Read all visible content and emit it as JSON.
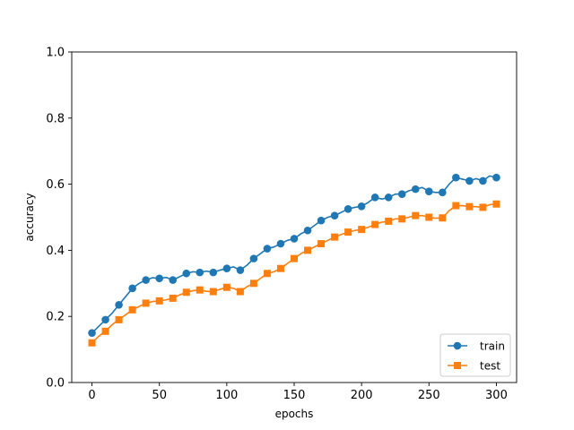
{
  "chart_data": {
    "type": "line",
    "title": "",
    "xlabel": "epochs",
    "ylabel": "accuracy",
    "xlim": [
      -15,
      315
    ],
    "ylim": [
      0.0,
      1.0
    ],
    "xticks": [
      0,
      50,
      100,
      150,
      200,
      250,
      300
    ],
    "xtick_labels": [
      "0",
      "50",
      "100",
      "150",
      "200",
      "250",
      "300"
    ],
    "yticks": [
      0.0,
      0.2,
      0.4,
      0.6,
      0.8,
      1.0
    ],
    "ytick_labels": [
      "0.0",
      "0.2",
      "0.4",
      "0.6",
      "0.8",
      "1.0"
    ],
    "grid": false,
    "legend_position": "lower-right",
    "series": [
      {
        "name": "train",
        "color": "#1f77b4",
        "marker": "circle",
        "marker_every": 10,
        "x": [
          0,
          5,
          10,
          15,
          20,
          25,
          30,
          35,
          40,
          45,
          50,
          55,
          60,
          65,
          70,
          75,
          80,
          85,
          90,
          95,
          100,
          105,
          110,
          115,
          120,
          125,
          130,
          135,
          140,
          145,
          150,
          155,
          160,
          165,
          170,
          175,
          180,
          185,
          190,
          195,
          200,
          205,
          210,
          215,
          220,
          225,
          230,
          235,
          240,
          245,
          250,
          255,
          260,
          265,
          270,
          275,
          280,
          285,
          290,
          295,
          300
        ],
        "values": [
          0.15,
          0.17,
          0.19,
          0.21,
          0.235,
          0.26,
          0.285,
          0.3,
          0.31,
          0.317,
          0.315,
          0.318,
          0.31,
          0.32,
          0.33,
          0.335,
          0.333,
          0.337,
          0.333,
          0.34,
          0.345,
          0.35,
          0.34,
          0.355,
          0.375,
          0.39,
          0.405,
          0.41,
          0.42,
          0.43,
          0.435,
          0.45,
          0.46,
          0.475,
          0.49,
          0.5,
          0.505,
          0.515,
          0.525,
          0.53,
          0.533,
          0.545,
          0.56,
          0.555,
          0.56,
          0.57,
          0.57,
          0.58,
          0.585,
          0.59,
          0.578,
          0.575,
          0.575,
          0.6,
          0.62,
          0.615,
          0.61,
          0.617,
          0.61,
          0.625,
          0.62
        ]
      },
      {
        "name": "test",
        "color": "#ff7f0e",
        "marker": "square",
        "marker_every": 10,
        "x": [
          0,
          5,
          10,
          15,
          20,
          25,
          30,
          35,
          40,
          45,
          50,
          55,
          60,
          65,
          70,
          75,
          80,
          85,
          90,
          95,
          100,
          105,
          110,
          115,
          120,
          125,
          130,
          135,
          140,
          145,
          150,
          155,
          160,
          165,
          170,
          175,
          180,
          185,
          190,
          195,
          200,
          205,
          210,
          215,
          220,
          225,
          230,
          235,
          240,
          245,
          250,
          255,
          260,
          265,
          270,
          275,
          280,
          285,
          290,
          295,
          300
        ],
        "values": [
          0.12,
          0.14,
          0.155,
          0.175,
          0.19,
          0.205,
          0.22,
          0.23,
          0.24,
          0.245,
          0.247,
          0.25,
          0.255,
          0.265,
          0.273,
          0.278,
          0.28,
          0.276,
          0.275,
          0.282,
          0.288,
          0.285,
          0.275,
          0.29,
          0.3,
          0.315,
          0.33,
          0.335,
          0.345,
          0.36,
          0.375,
          0.39,
          0.4,
          0.41,
          0.42,
          0.43,
          0.44,
          0.448,
          0.455,
          0.46,
          0.463,
          0.47,
          0.478,
          0.485,
          0.488,
          0.495,
          0.495,
          0.5,
          0.505,
          0.505,
          0.5,
          0.497,
          0.498,
          0.52,
          0.535,
          0.535,
          0.532,
          0.532,
          0.53,
          0.538,
          0.54
        ]
      }
    ]
  }
}
